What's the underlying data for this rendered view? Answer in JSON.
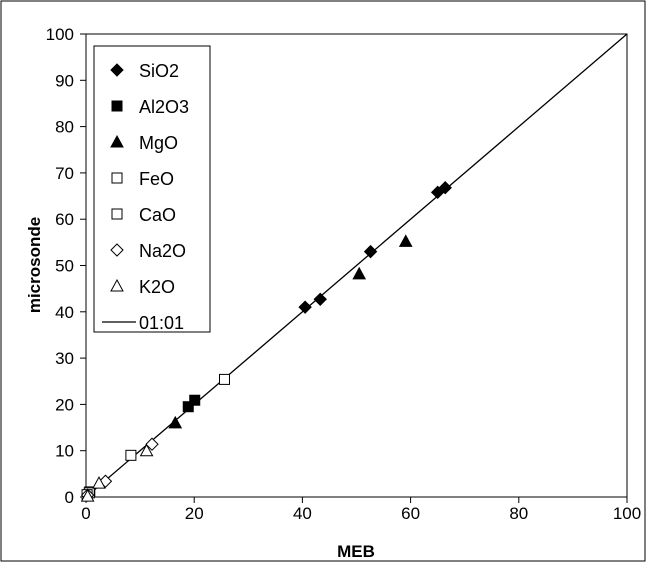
{
  "chart_data": {
    "type": "scatter",
    "xlabel": "MEB",
    "ylabel": "microsonde",
    "xlim": [
      0,
      100
    ],
    "ylim": [
      0,
      100
    ],
    "x_ticks": [
      "0",
      "20",
      "40",
      "60",
      "80",
      "100"
    ],
    "y_ticks": [
      "0",
      "10",
      "20",
      "30",
      "40",
      "50",
      "60",
      "70",
      "80",
      "90",
      "100"
    ],
    "grid": false,
    "legend_position": "top-left",
    "series": [
      {
        "name": "SiO2",
        "marker": "diamond-filled",
        "points": [
          [
            40.5,
            41
          ],
          [
            43.3,
            42.7
          ],
          [
            52.6,
            53
          ],
          [
            65,
            65.8
          ],
          [
            66.4,
            66.8
          ]
        ]
      },
      {
        "name": "Al2O3",
        "marker": "square-filled",
        "points": [
          [
            18.9,
            19.5
          ],
          [
            20.1,
            20.9
          ]
        ]
      },
      {
        "name": "MgO",
        "marker": "triangle-filled",
        "points": [
          [
            16.5,
            16
          ],
          [
            50.5,
            48.2
          ],
          [
            59.1,
            55.2
          ]
        ]
      },
      {
        "name": "FeO",
        "marker": "square-open",
        "points": [
          [
            25.6,
            25.4
          ],
          [
            8.3,
            9
          ],
          [
            0.7,
            1.1
          ]
        ]
      },
      {
        "name": "CaO",
        "marker": "square-open",
        "points": [
          [
            0.6,
            0.9
          ],
          [
            0.2,
            0.5
          ]
        ]
      },
      {
        "name": "Na2O",
        "marker": "diamond-open",
        "points": [
          [
            12.2,
            11.4
          ],
          [
            3.6,
            3.4
          ],
          [
            0.3,
            0.4
          ]
        ]
      },
      {
        "name": "K2O",
        "marker": "triangle-open",
        "points": [
          [
            11.2,
            10
          ],
          [
            2.4,
            3
          ],
          [
            0.3,
            0.2
          ]
        ]
      },
      {
        "name": "01:01",
        "marker": "line",
        "points": [
          [
            0,
            0
          ],
          [
            100,
            100
          ]
        ]
      }
    ]
  }
}
